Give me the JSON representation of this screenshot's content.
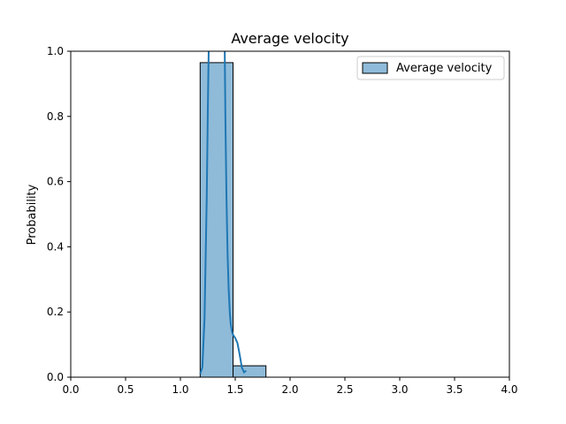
{
  "chart_data": {
    "type": "bar",
    "title": "Average velocity",
    "xlabel": "",
    "ylabel": "Probability",
    "xlim": [
      0,
      4
    ],
    "ylim": [
      0,
      1
    ],
    "xticks": [
      "0.0",
      "0.5",
      "1.0",
      "1.5",
      "2.0",
      "2.5",
      "3.0",
      "3.5",
      "4.0"
    ],
    "yticks": [
      "0.0",
      "0.2",
      "0.4",
      "0.6",
      "0.8",
      "1.0"
    ],
    "grid": false,
    "legend": {
      "position": "top-right",
      "entries": [
        "Average velocity"
      ]
    },
    "series": [
      {
        "name": "Average velocity",
        "color": "#1f77b4",
        "bins": [
          {
            "start": 1.18,
            "end": 1.48,
            "value": 0.965
          },
          {
            "start": 1.48,
            "end": 1.78,
            "value": 0.035
          }
        ],
        "kde": {
          "x": [
            1.18,
            1.2,
            1.22,
            1.24,
            1.25,
            1.26,
            1.27,
            1.28,
            1.29,
            1.3,
            1.31,
            1.32,
            1.33,
            1.34,
            1.35,
            1.36,
            1.37,
            1.38,
            1.39,
            1.4,
            1.41,
            1.42,
            1.43,
            1.44,
            1.45,
            1.46,
            1.47,
            1.48,
            1.5,
            1.52,
            1.54,
            1.56,
            1.58,
            1.6
          ],
          "y": [
            0.01,
            0.03,
            0.18,
            0.55,
            0.82,
            1.05,
            1.5,
            2.1,
            2.6,
            2.9,
            3.0,
            2.95,
            2.85,
            2.7,
            2.55,
            2.4,
            2.2,
            1.95,
            1.6,
            1.15,
            0.8,
            0.55,
            0.38,
            0.27,
            0.2,
            0.16,
            0.14,
            0.13,
            0.12,
            0.105,
            0.07,
            0.03,
            0.015,
            0.02
          ]
        }
      }
    ]
  }
}
